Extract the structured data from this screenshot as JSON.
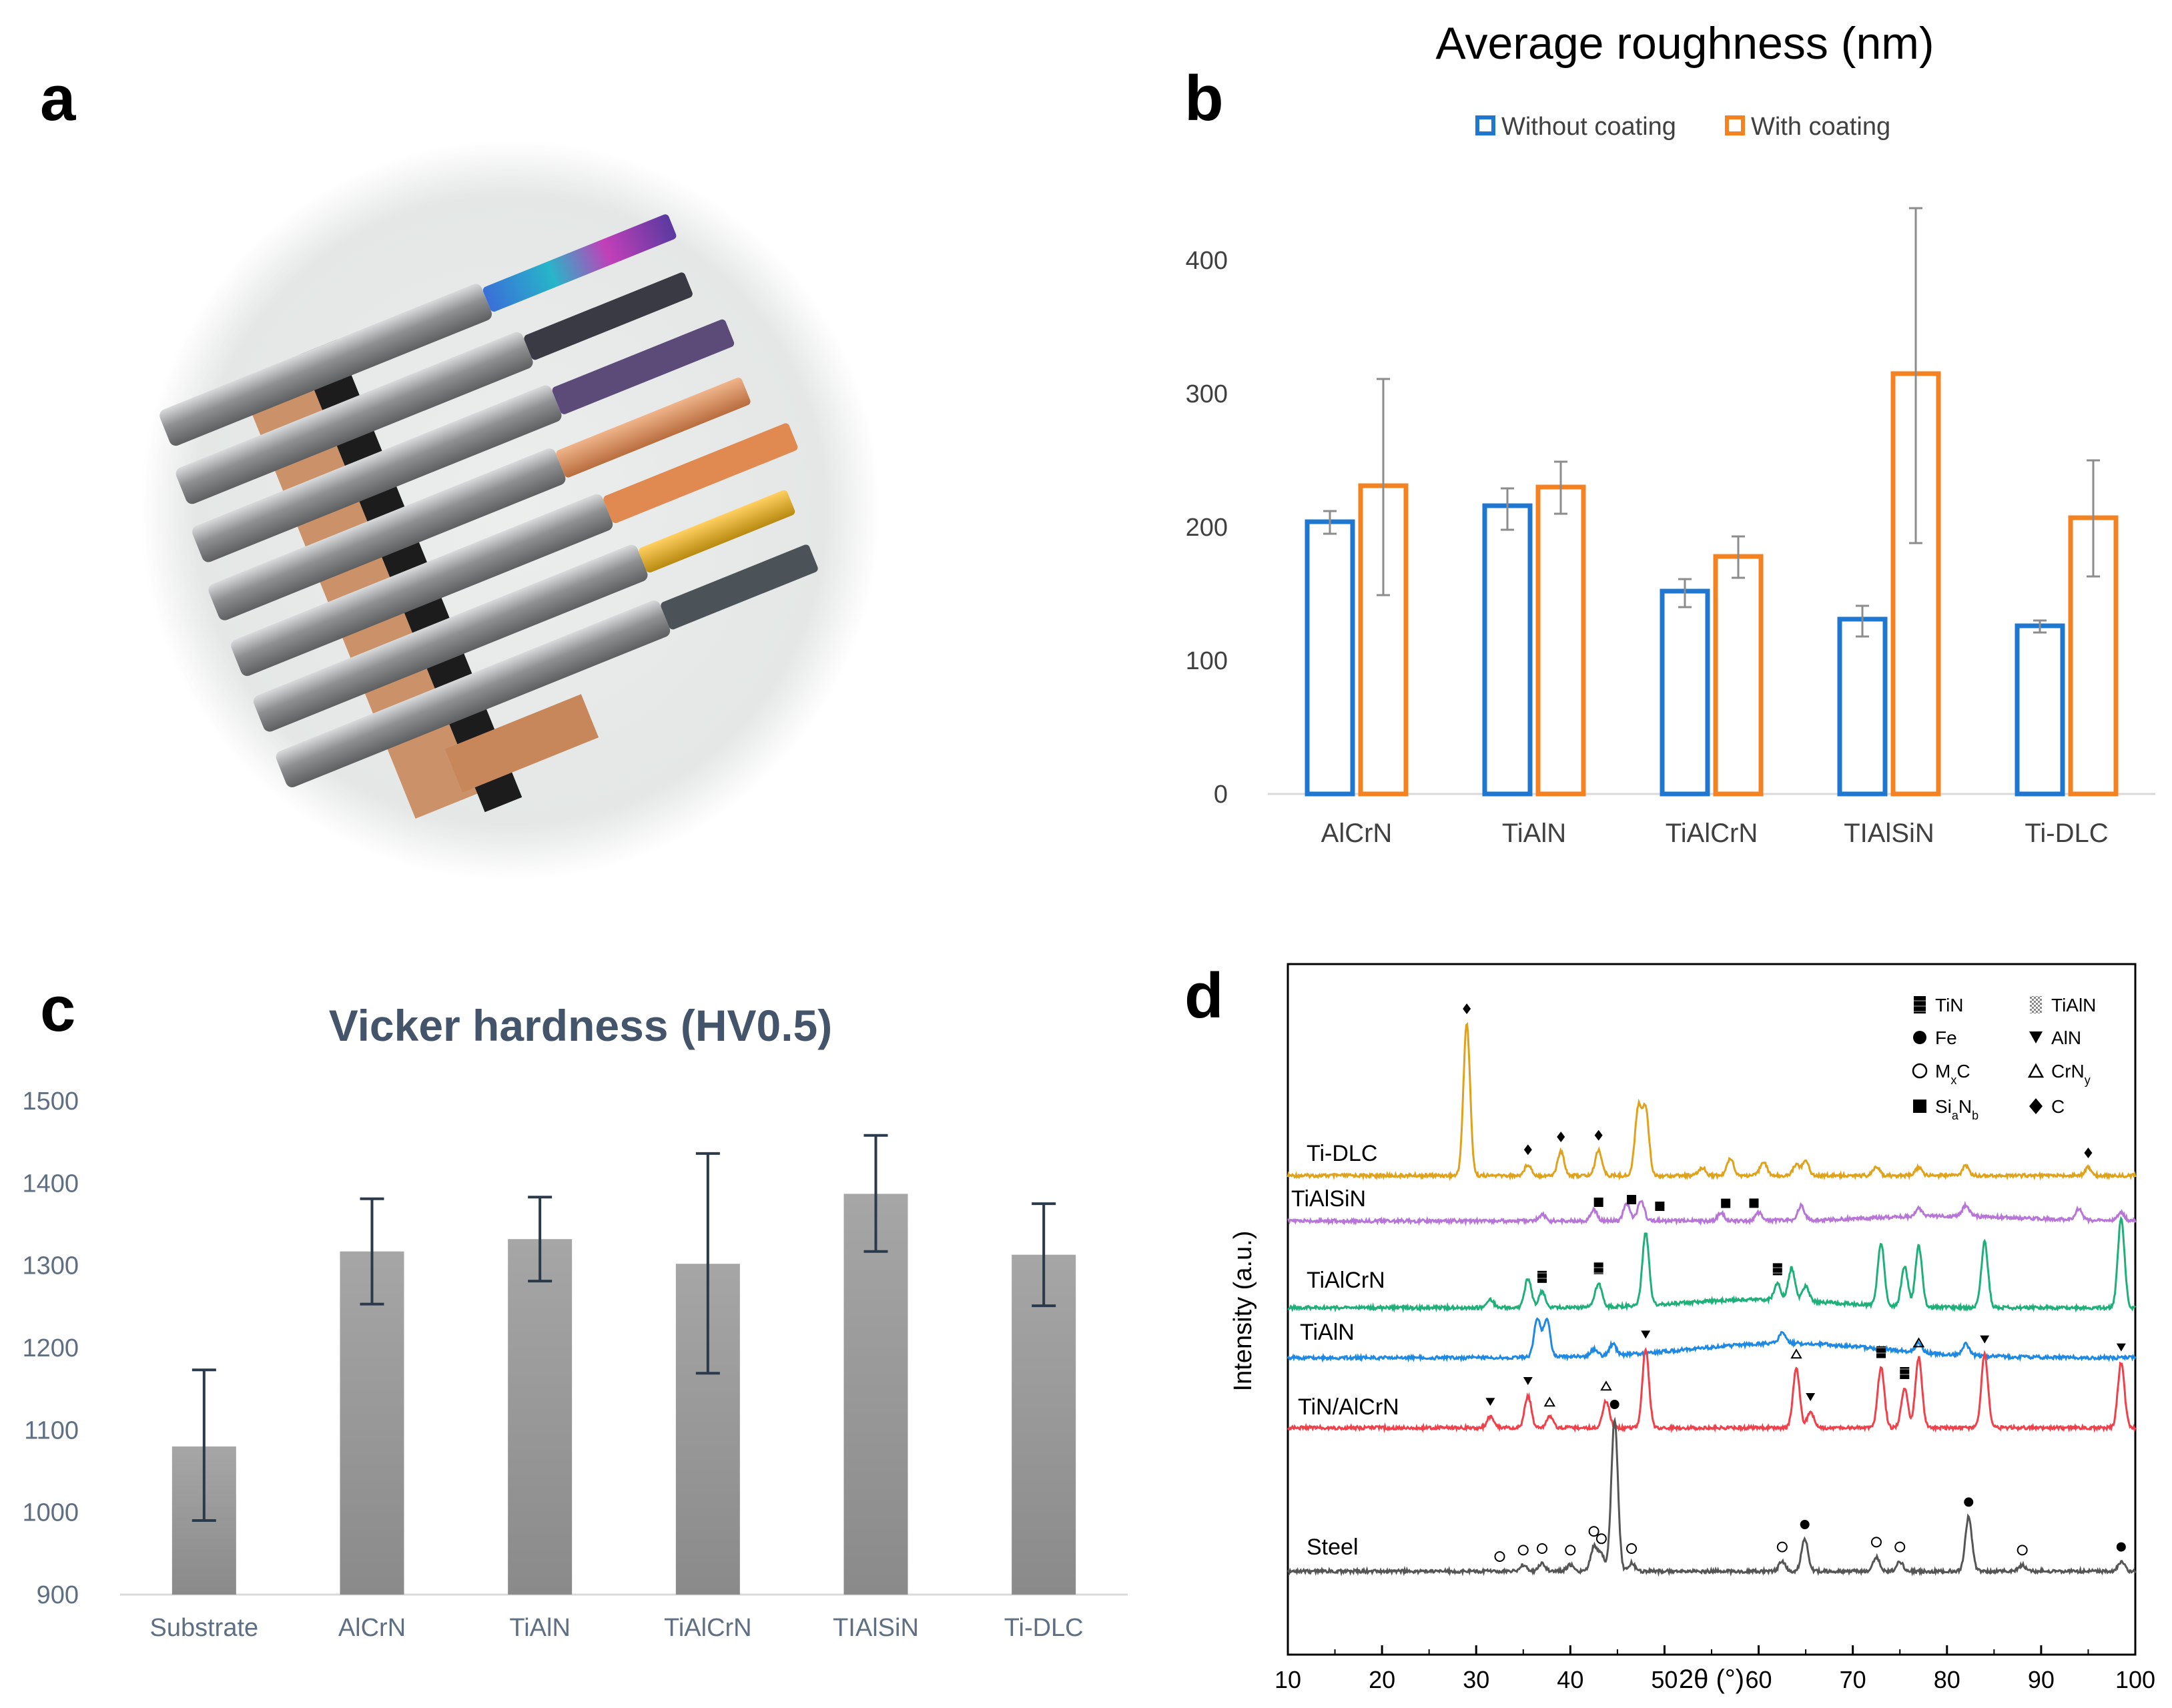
{
  "panels": {
    "a": {
      "letter": "a"
    },
    "b": {
      "letter": "b"
    },
    "c": {
      "letter": "c"
    },
    "d": {
      "letter": "d"
    }
  },
  "photo": {
    "colors": {
      "background": "#e6e9e8",
      "steel": "#9a9c9e",
      "copper": "#c8875a",
      "dark": "#1c1c1c"
    }
  },
  "chart_data": [
    {
      "id": "b",
      "type": "bar",
      "title": "Average roughness (nm)",
      "categories": [
        "AlCrN",
        "TiAlN",
        "TiAlCrN",
        "TIAlSiN",
        "Ti-DLC"
      ],
      "series": [
        {
          "name": "Without coating",
          "color": "#1f77d0",
          "values": [
            204,
            216,
            152,
            131,
            126
          ],
          "err_low": [
            195,
            198,
            140,
            118,
            121
          ],
          "err_high": [
            212,
            229,
            161,
            141,
            130
          ]
        },
        {
          "name": "With coating",
          "color": "#f58220",
          "values": [
            231,
            230,
            178,
            315,
            207
          ],
          "err_low": [
            149,
            210,
            162,
            188,
            163
          ],
          "err_high": [
            311,
            249,
            193,
            439,
            250
          ]
        }
      ],
      "ylim": [
        0,
        450
      ],
      "yticks": [
        0,
        100,
        200,
        300,
        400
      ],
      "legend": "top"
    },
    {
      "id": "c",
      "type": "bar",
      "title": "Vicker hardness (HV0.5)",
      "categories": [
        "Substrate",
        "AlCrN",
        "TiAlN",
        "TiAlCrN",
        "TIAlSiN",
        "Ti-DLC"
      ],
      "values": [
        1080,
        1317,
        1332,
        1302,
        1387,
        1313
      ],
      "err_low": [
        990,
        1253,
        1281,
        1169,
        1317,
        1251
      ],
      "err_high": [
        1173,
        1381,
        1383,
        1436,
        1458,
        1375
      ],
      "ylim": [
        900,
        1500
      ],
      "yticks": [
        900,
        1000,
        1100,
        1200,
        1300,
        1400,
        1500
      ],
      "title_color": "#44546a",
      "axis_color": "#5f6f83"
    },
    {
      "id": "d",
      "type": "line",
      "xlabel": "2θ (°)",
      "ylabel": "Intensity (a.u.)",
      "xlim": [
        10,
        100
      ],
      "xticks": [
        10,
        20,
        30,
        40,
        50,
        60,
        70,
        80,
        90,
        100
      ],
      "legend_entries": [
        {
          "symbol": "TiN-hatch",
          "label": "TiN"
        },
        {
          "symbol": "TiAlN-hatch",
          "label": "TiAlN"
        },
        {
          "symbol": "circle-filled",
          "label": "Fe"
        },
        {
          "symbol": "triangle-down",
          "label": "AlN"
        },
        {
          "symbol": "circle-open",
          "label": "MxC"
        },
        {
          "symbol": "triangle-open",
          "label": "CrNy"
        },
        {
          "symbol": "square",
          "label": "SiaNb"
        },
        {
          "symbol": "diamond",
          "label": "C"
        }
      ],
      "series": [
        {
          "name": "Ti-DLC",
          "color": "#e0a21a",
          "peaks": [
            [
              29,
              190
            ],
            [
              35.5,
              14
            ],
            [
              39,
              30
            ],
            [
              43,
              32
            ],
            [
              47.2,
              82
            ],
            [
              48,
              82
            ],
            [
              54,
              10
            ],
            [
              57,
              22
            ],
            [
              60.5,
              18
            ],
            [
              64,
              14
            ],
            [
              65,
              18
            ],
            [
              72.5,
              10
            ],
            [
              77,
              10
            ],
            [
              82,
              12
            ],
            [
              95,
              10
            ]
          ],
          "markers": [
            {
              "sym": "diamond",
              "x": 29
            },
            {
              "sym": "diamond",
              "x": 35.5
            },
            {
              "sym": "diamond",
              "x": 39
            },
            {
              "sym": "diamond",
              "x": 43
            },
            {
              "sym": "diamond",
              "x": 95
            }
          ]
        },
        {
          "name": "TiAlSiN",
          "color": "#b775d8",
          "peaks": [
            [
              37,
              8
            ],
            [
              42.5,
              14
            ],
            [
              46,
              22
            ],
            [
              47.5,
              26
            ],
            [
              56,
              10
            ],
            [
              60,
              10
            ],
            [
              64.5,
              18
            ],
            [
              77,
              10
            ],
            [
              82,
              14
            ],
            [
              94,
              14
            ],
            [
              98.5,
              10
            ]
          ],
          "markers": [
            {
              "sym": "square",
              "x": 43
            },
            {
              "sym": "square",
              "x": 46.5
            },
            {
              "sym": "square",
              "x": 49.5
            },
            {
              "sym": "square",
              "x": 56.5
            },
            {
              "sym": "square",
              "x": 59.5
            }
          ]
        },
        {
          "name": "TiAlCrN",
          "color": "#1fb07a",
          "peaks": [
            [
              31.5,
              10
            ],
            [
              35.5,
              36
            ],
            [
              37,
              20
            ],
            [
              43,
              30
            ],
            [
              48,
              90
            ],
            [
              62,
              20
            ],
            [
              63.5,
              40
            ],
            [
              65,
              18
            ],
            [
              73,
              78
            ],
            [
              75.5,
              50
            ],
            [
              77,
              76
            ],
            [
              84,
              82
            ],
            [
              98.5,
              112
            ]
          ],
          "markers": [
            {
              "sym": "hatch",
              "x": 37
            },
            {
              "sym": "hatch",
              "x": 43
            },
            {
              "sym": "hatch",
              "x": 62
            }
          ]
        },
        {
          "name": "TiAlN",
          "color": "#1e88e5",
          "peaks": [
            [
              36.5,
              48
            ],
            [
              37.5,
              48
            ],
            [
              42.5,
              8
            ],
            [
              44.5,
              14
            ],
            [
              62.5,
              14
            ],
            [
              77,
              12
            ],
            [
              82,
              14
            ]
          ],
          "markers": []
        },
        {
          "name": "TiN/AlCrN",
          "color": "#f0404a",
          "peaks": [
            [
              31.5,
              14
            ],
            [
              35.5,
              40
            ],
            [
              37.8,
              14
            ],
            [
              43.8,
              34
            ],
            [
              48,
              98
            ],
            [
              64,
              74
            ],
            [
              65.5,
              20
            ],
            [
              73,
              76
            ],
            [
              75.5,
              50
            ],
            [
              77,
              88
            ],
            [
              84,
              92
            ],
            [
              98.5,
              82
            ]
          ],
          "markers": [
            {
              "sym": "triangle-down",
              "x": 31.5
            },
            {
              "sym": "triangle-down",
              "x": 35.5
            },
            {
              "sym": "triangle-open",
              "x": 37.8
            },
            {
              "sym": "triangle-open",
              "x": 43.8
            },
            {
              "sym": "triangle-down",
              "x": 48
            },
            {
              "sym": "triangle-open",
              "x": 64
            },
            {
              "sym": "triangle-down",
              "x": 65.5
            },
            {
              "sym": "hatch",
              "x": 73
            },
            {
              "sym": "hatch",
              "x": 75.5
            },
            {
              "sym": "triangle-open",
              "x": 77
            },
            {
              "sym": "triangle-down",
              "x": 84
            },
            {
              "sym": "triangle-down",
              "x": 98.5
            }
          ]
        },
        {
          "name": "Steel",
          "color": "#555555",
          "peaks": [
            [
              35,
              8
            ],
            [
              37,
              10
            ],
            [
              40,
              8
            ],
            [
              42.5,
              30
            ],
            [
              43.3,
              20
            ],
            [
              44.7,
              190
            ],
            [
              46.5,
              10
            ],
            [
              62.5,
              12
            ],
            [
              64.9,
              40
            ],
            [
              72.5,
              18
            ],
            [
              75,
              12
            ],
            [
              82.3,
              68
            ],
            [
              88,
              8
            ],
            [
              98.5,
              12
            ]
          ],
          "markers": [
            {
              "sym": "circle-open",
              "x": 32.5
            },
            {
              "sym": "circle-open",
              "x": 35
            },
            {
              "sym": "circle-open",
              "x": 37
            },
            {
              "sym": "circle-open",
              "x": 40
            },
            {
              "sym": "circle-open",
              "x": 42.5
            },
            {
              "sym": "circle-open",
              "x": 43.3
            },
            {
              "sym": "circle-filled",
              "x": 44.7
            },
            {
              "sym": "circle-open",
              "x": 46.5
            },
            {
              "sym": "circle-open",
              "x": 62.5
            },
            {
              "sym": "circle-filled",
              "x": 64.9
            },
            {
              "sym": "circle-open",
              "x": 72.5
            },
            {
              "sym": "circle-open",
              "x": 75
            },
            {
              "sym": "circle-filled",
              "x": 82.3
            },
            {
              "sym": "circle-open",
              "x": 88
            },
            {
              "sym": "circle-filled",
              "x": 98.5
            }
          ]
        }
      ]
    }
  ]
}
